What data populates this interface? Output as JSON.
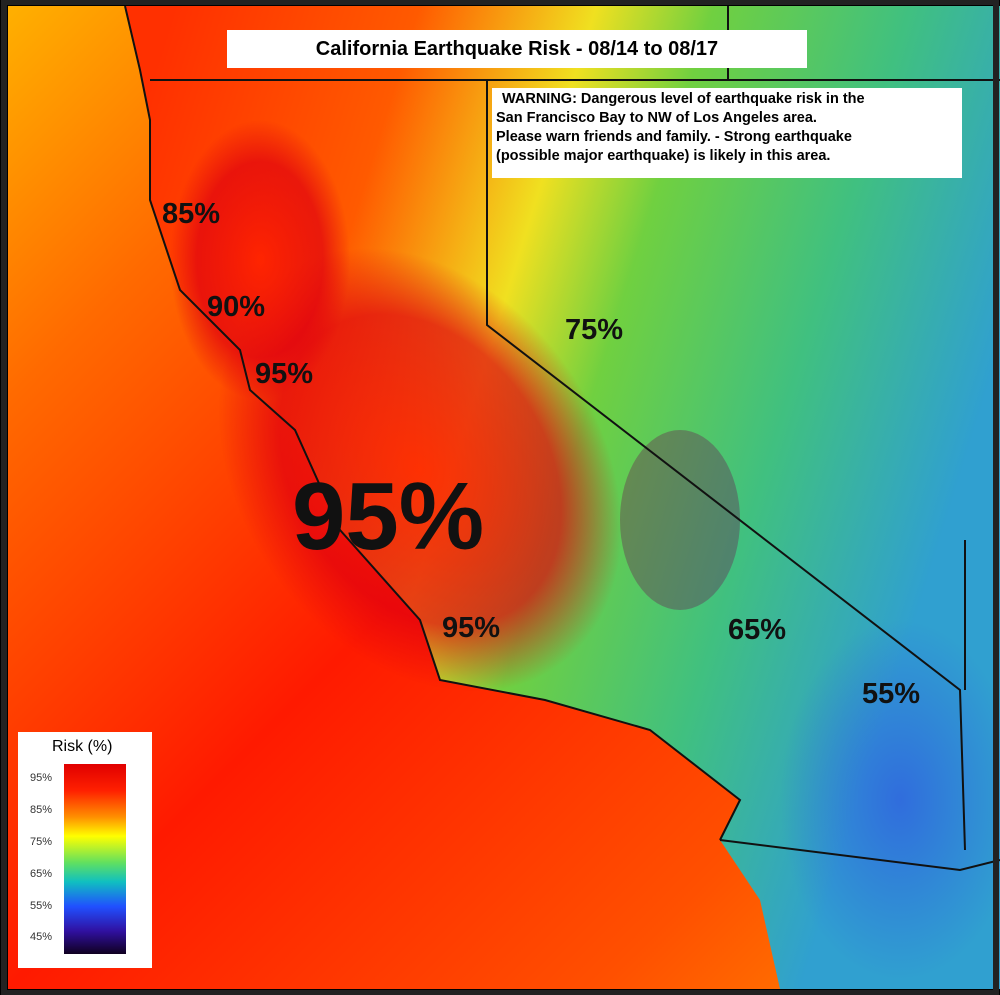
{
  "title": "California Earthquake Risk - 08/14 to 08/17",
  "warning": [
    "WARNING: Dangerous level of earthquake risk in the",
    "San Francisco Bay to NW of Los Angeles area.",
    "Please warn friends and family. - Strong earthquake",
    "(possible major earthquake) is likely in this area."
  ],
  "region_labels": [
    "85%",
    "90%",
    "95%",
    "95%",
    "95%",
    "75%",
    "65%",
    "55%"
  ],
  "legend": {
    "title": "Risk (%)",
    "ticks": [
      "95%",
      "85%",
      "75%",
      "65%",
      "55%",
      "45%"
    ]
  }
}
